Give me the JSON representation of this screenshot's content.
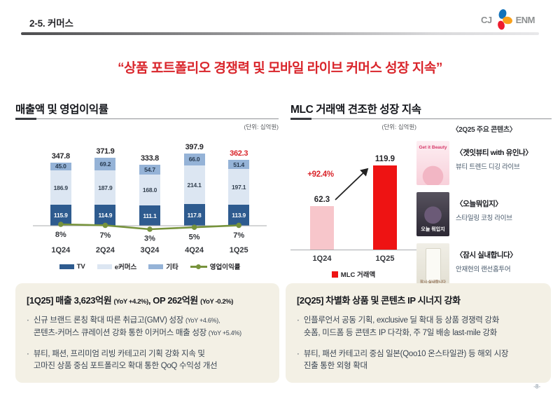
{
  "header": {
    "page_label": "2-5. 커머스",
    "logo_left": "CJ",
    "logo_right": "ENM"
  },
  "headline": "“상품 포트폴리오 경쟁력 및 모바일 라이브 커머스 성장 지속”",
  "left_section": {
    "title": "매출액 및 영업이익률",
    "unit_label": "(단위: 십억원)"
  },
  "right_section": {
    "title": "MLC 거래액 견조한 성장 지속",
    "unit_label": "(단위: 십억원)",
    "contents_header": "〈2Q25 주요 콘텐츠〉",
    "contents": [
      {
        "title": "〈겟잇뷰티 with 유인나〉",
        "desc": "뷰티 트렌드 디깅 라이브",
        "poster_text": "Get it Beauty"
      },
      {
        "title": "〈오늘뭐입지〉",
        "desc": "스타일링 코칭 라이브",
        "poster_text": "오늘 뭐입지"
      },
      {
        "title": "〈잠시 실내합니다〉",
        "desc": "안재현의 랜선홈투어",
        "poster_text": "잠시 실내합니다"
      }
    ]
  },
  "chart_data": [
    {
      "type": "bar",
      "variant": "stacked-with-line",
      "title": "매출액 및 영업이익률",
      "unit": "십억원",
      "categories": [
        "1Q24",
        "2Q24",
        "3Q24",
        "4Q24",
        "1Q25"
      ],
      "series": [
        {
          "name": "TV",
          "color": "#2e5b8f",
          "label_color": "#ffffff",
          "values": [
            115.9,
            114.9,
            111.1,
            117.8,
            113.9
          ],
          "labels": [
            "115.9",
            "114.9",
            "111.1",
            "117.8",
            "113.9"
          ]
        },
        {
          "name": "e커머스",
          "color": "#dce6f2",
          "label_color": "#33404f",
          "values": [
            186.9,
            187.9,
            168.0,
            214.1,
            197.1
          ],
          "labels": [
            "186.9",
            "187.9",
            "168.0",
            "214.1",
            "197.1"
          ]
        },
        {
          "name": "기타",
          "color": "#95b3d7",
          "label_color": "#273a50",
          "values": [
            45.0,
            69.2,
            54.7,
            66.0,
            51.4
          ],
          "labels": [
            "45.0",
            "69.2",
            "54.7",
            "66.0",
            "51.4"
          ]
        }
      ],
      "totals": [
        "347.8",
        "371.9",
        "333.8",
        "397.9",
        "362.3"
      ],
      "total_highlight_index": 4,
      "line": {
        "name": "영업이익률",
        "color": "#77933c",
        "values_pct": [
          8,
          7,
          3,
          5,
          7
        ],
        "labels": [
          "8%",
          "7%",
          "3%",
          "5%",
          "7%"
        ]
      },
      "ylim": [
        0,
        500
      ],
      "legend_position": "bottom",
      "grid": false
    },
    {
      "type": "bar",
      "variant": "simple",
      "title": "MLC 거래액 견조한 성장 지속",
      "unit": "십억원",
      "categories": [
        "1Q24",
        "1Q25"
      ],
      "values": [
        62.3,
        119.9
      ],
      "labels": [
        "62.3",
        "119.9"
      ],
      "colors": [
        "#f7c6cb",
        "#ee1313"
      ],
      "growth_label": "+92.4%",
      "legend": [
        {
          "name": "MLC 거래액",
          "color": "#ee1313"
        }
      ],
      "ylim": [
        0,
        130
      ],
      "legend_position": "bottom",
      "grid": false
    }
  ],
  "boxes": {
    "left": {
      "title_main_1": "[1Q25]  매출 3,623억원 ",
      "title_small_1": "(YoY +4.2%)",
      "title_main_2": ", OP 262억원 ",
      "title_small_2": "(YoY -0.2%)",
      "bullet1_line1_main": "신규 브랜드 론칭 확대 따른 취급고(GMV) 성장 ",
      "bullet1_line1_small": "(YoY +4.6%),",
      "bullet1_line2_main": "콘텐츠-커머스 큐레이션 강화 통한 이커머스 매출 성장 ",
      "bullet1_line2_small": "(YoY +5.4%)",
      "bullet2_line1": "뷰티, 패션, 프리미엄 리빙 카테고리 기획 강화 지속 및",
      "bullet2_line2": "고마진 상품 중심 포트폴리오 확대 통한 QoQ 수익성 개선"
    },
    "right": {
      "title": "[2Q25]  차별화 상품 및 콘텐츠 IP 시너지 강화",
      "bullet1_line1": "인플루언서 공동 기획, exclusive 딜 확대 등 상품 경쟁력 강화",
      "bullet1_line2": "숏폼, 미드폼 등 콘텐츠 IP 다각화, 주 7일 배송 last-mile 강화",
      "bullet2_line1": "뷰티, 패션 카테고리 중심 일본(Qoo10 온스타일관) 등 해외 시장",
      "bullet2_line2": "진출 통한 외형 확대"
    }
  },
  "page_number": "-8-",
  "colors": {
    "accent_red": "#d9252b",
    "bar_red": "#ee1313",
    "bar_pink": "#f7c6cb",
    "tv_blue": "#2e5b8f",
    "ecommerce_blue": "#dce6f2",
    "etc_blue": "#95b3d7",
    "line_green": "#77933c",
    "box_beige": "#f3f0e5"
  }
}
